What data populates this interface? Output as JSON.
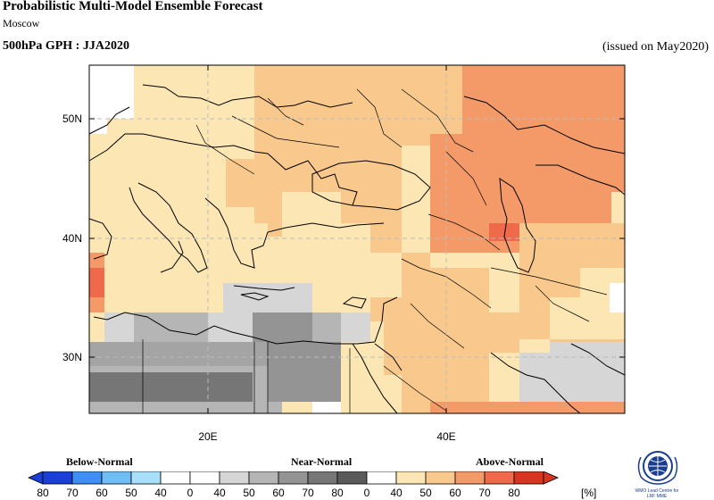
{
  "header": {
    "title": "Probabilistic Multi-Model Ensemble Forecast",
    "subtitle": "Moscow",
    "variable_title": "500hPa GPH : JJA2020",
    "issued": "(issued on May2020)"
  },
  "map": {
    "lat_labels": [
      "50N",
      "40N",
      "30N"
    ],
    "lon_labels": [
      "20E",
      "40E"
    ],
    "extent": {
      "lon": [
        10,
        55
      ],
      "lat": [
        25,
        55
      ]
    }
  },
  "legend": {
    "categories": [
      "Below-Normal",
      "Near-Normal",
      "Above-Normal"
    ],
    "numbers": [
      "80",
      "70",
      "60",
      "50",
      "40",
      "0",
      "40",
      "50",
      "60",
      "70",
      "80",
      "0",
      "40",
      "50",
      "60",
      "70",
      "80"
    ],
    "unit": "[%]",
    "colors": [
      "#1a3fd6",
      "#3d8ef5",
      "#6fbdf5",
      "#a8e0fa",
      "#ffffff",
      "#ffffff",
      "#d6d6d6",
      "#b5b5b5",
      "#949494",
      "#767676",
      "#5a5a5a",
      "#ffffff",
      "#fbe6b4",
      "#f8c88c",
      "#f49a68",
      "#ee6a4a",
      "#d83422"
    ]
  },
  "logo": {
    "text_line1": "WMO Lead Centre for",
    "text_line2": "LRF MME"
  }
}
